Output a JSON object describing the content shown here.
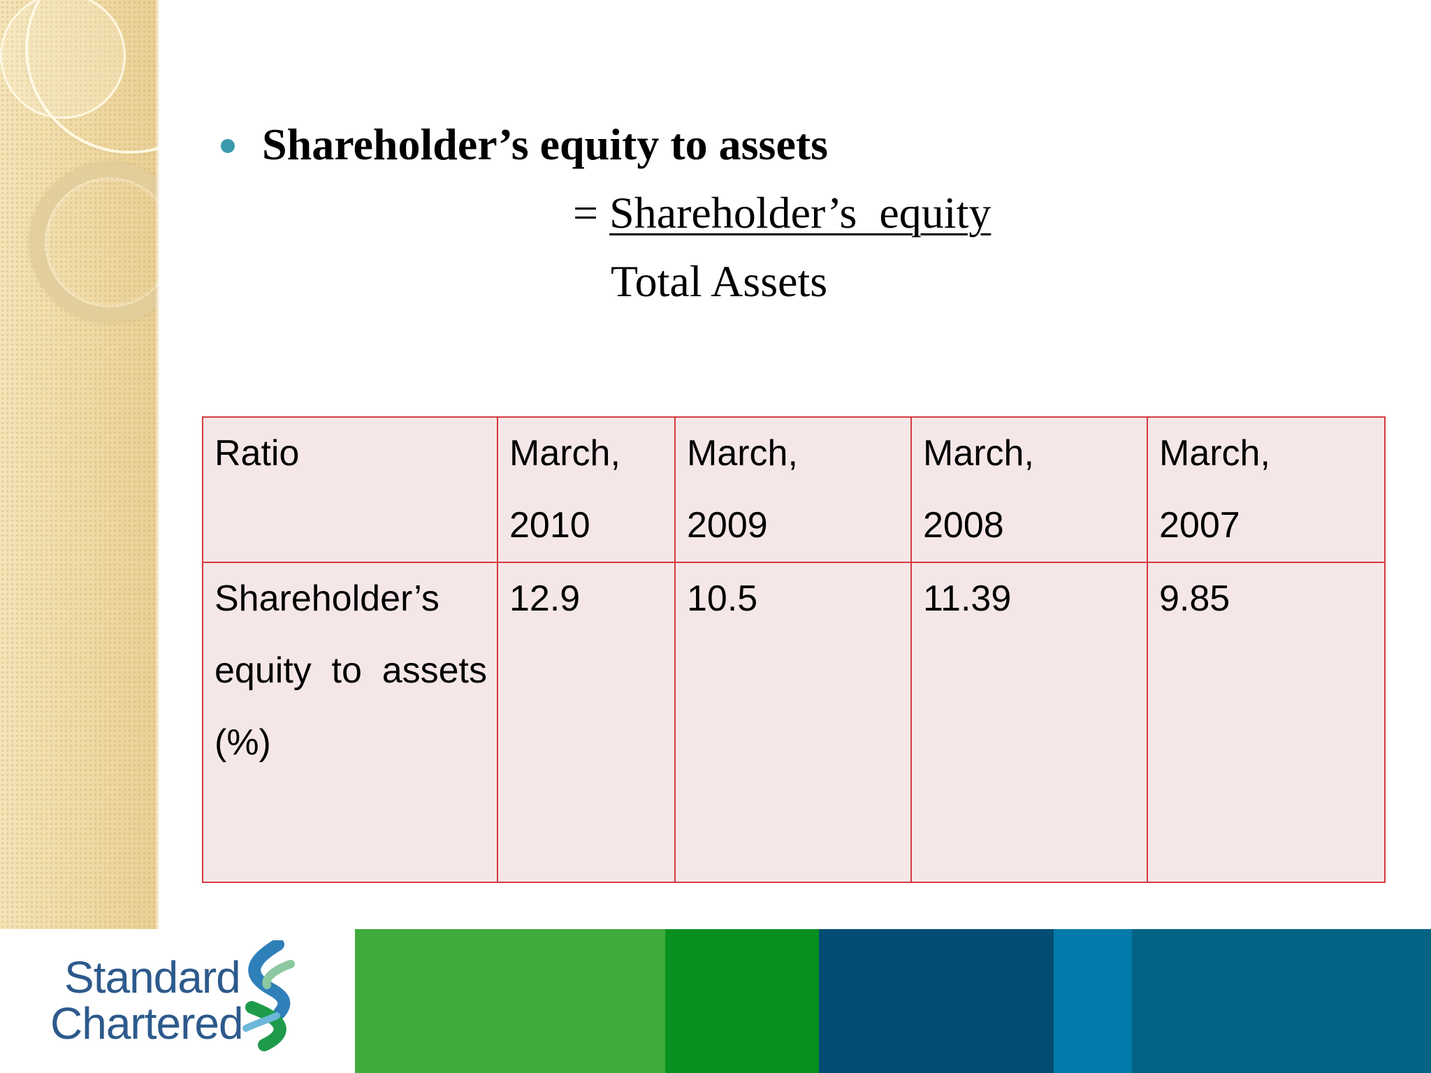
{
  "slide": {
    "heading": "Shareholder’s equity to assets",
    "formula": {
      "equals": "=",
      "numerator": "Shareholder’s  equity",
      "denominator": "Total Assets"
    }
  },
  "table": {
    "headers": [
      {
        "line1": "Ratio",
        "line2": ""
      },
      {
        "line1": "March,",
        "line2": "2010"
      },
      {
        "line1": "March,",
        "line2": "2009"
      },
      {
        "line1": "March,",
        "line2": "2008"
      },
      {
        "line1": "March,",
        "line2": "2007"
      }
    ],
    "row": {
      "label": "Shareholder’s equity to assets (%)",
      "values": [
        "12.9",
        "10.5",
        "11.39",
        "9.85"
      ]
    }
  },
  "footer": {
    "logo_line1": "Standard",
    "logo_line2": "Chartered",
    "band_colors": [
      "#3fab3a",
      "#07901f",
      "#034d73",
      "#027baa",
      "#026384"
    ]
  },
  "colors": {
    "bullet": "#3a9aac",
    "table_border": "#d43a3f",
    "table_fill": "#f5e7e8",
    "logo_text": "#2d5a8c"
  }
}
